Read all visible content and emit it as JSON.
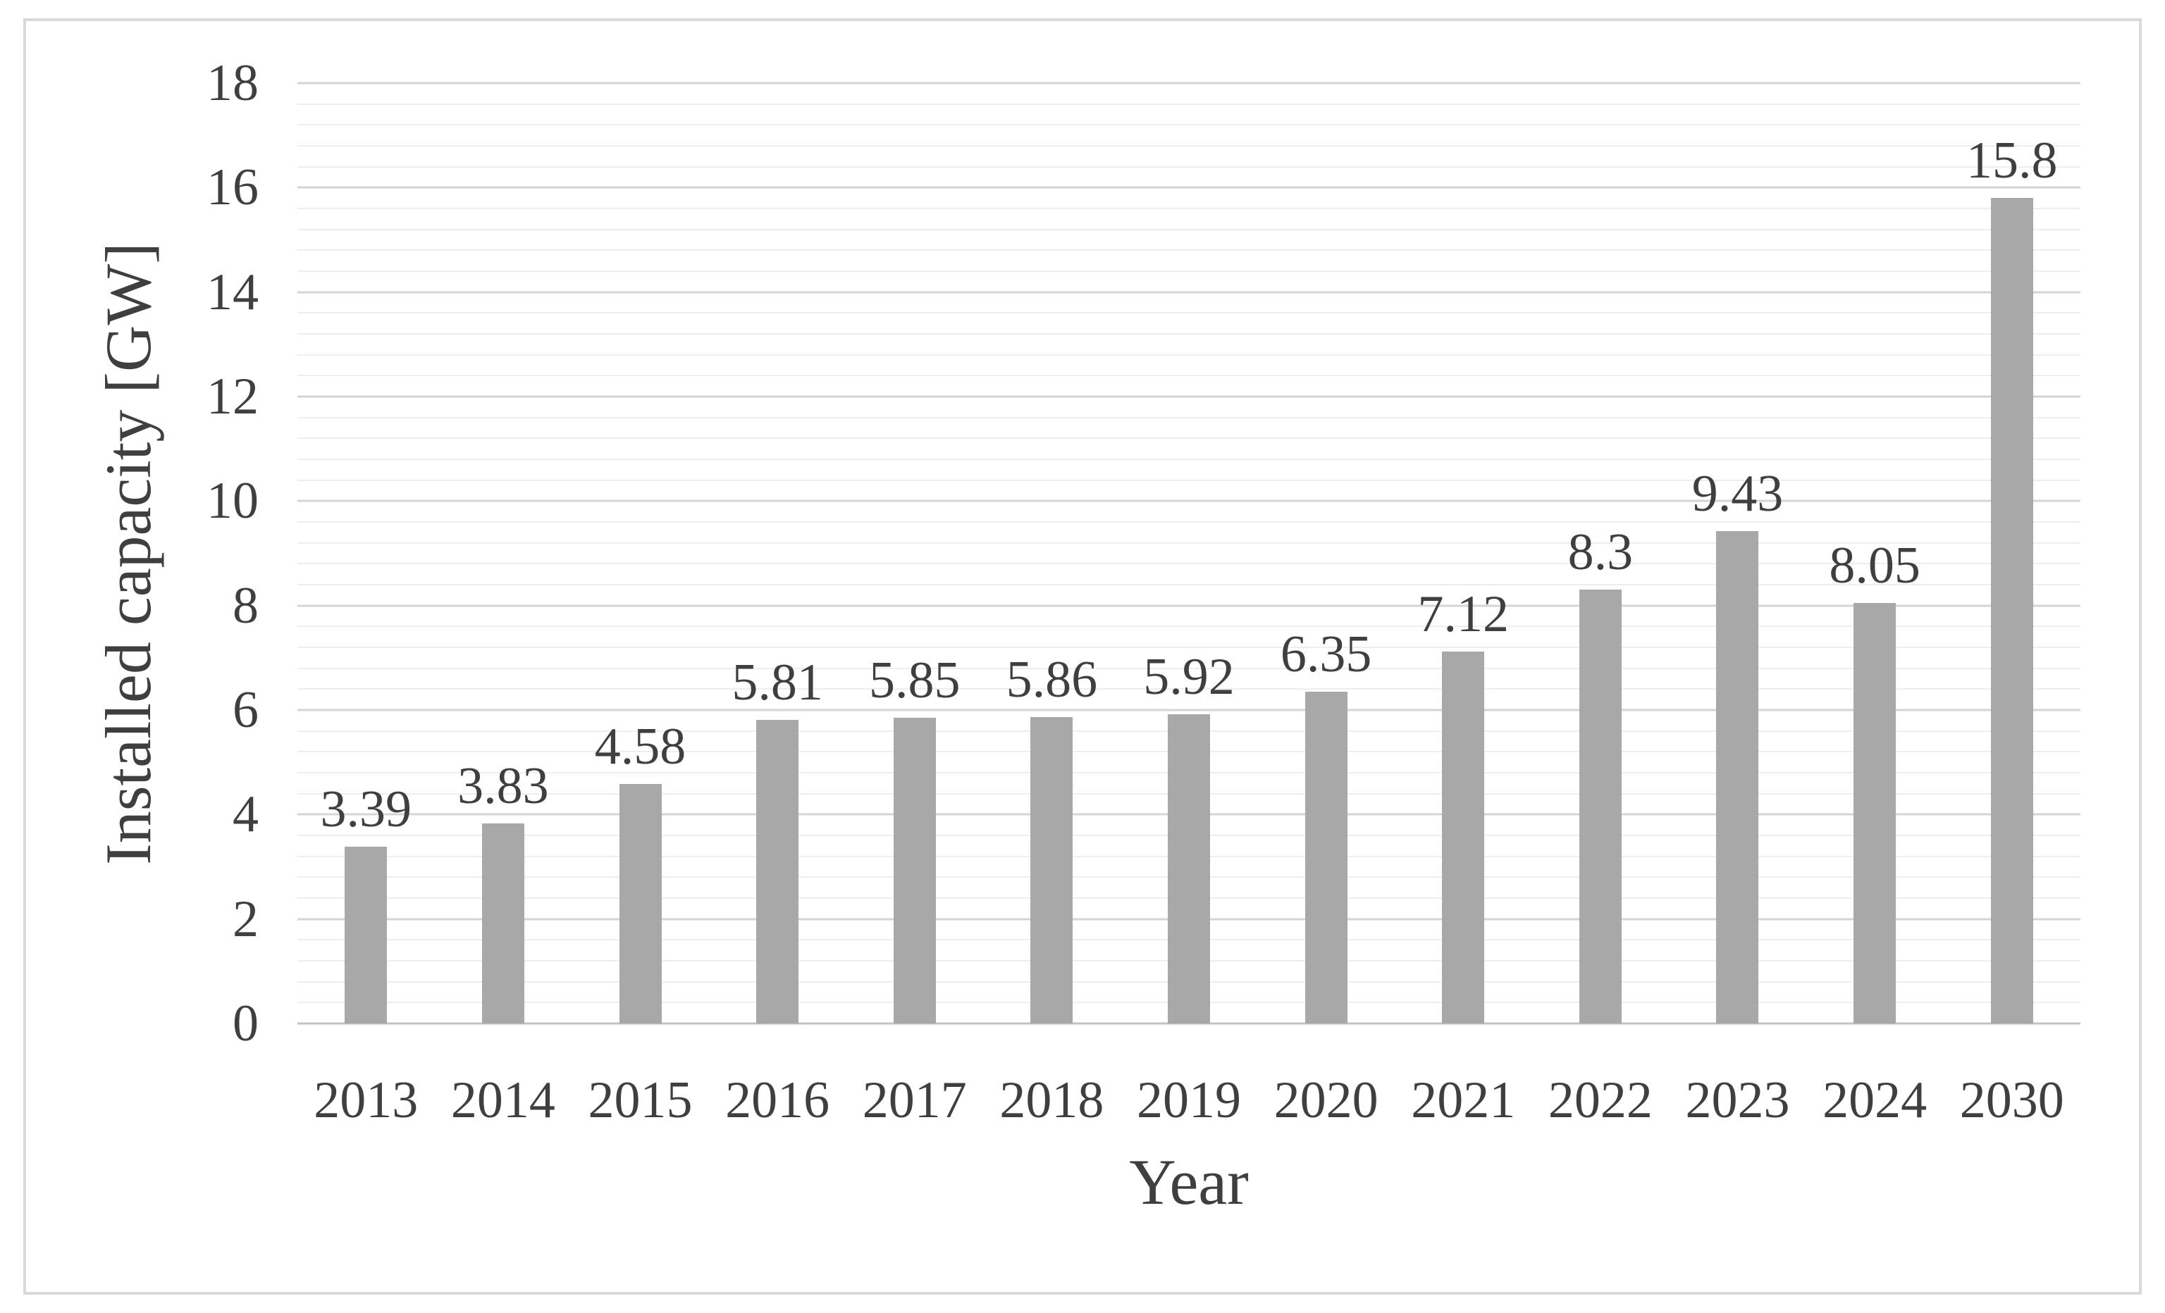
{
  "figure": {
    "border_color": "#d9d9d9",
    "background_color": "#ffffff",
    "text_color": "#3f3f3f"
  },
  "chart_data": {
    "type": "bar",
    "title": "",
    "xlabel": "Year",
    "ylabel": "Installed capacity [GW]",
    "categories": [
      "2013",
      "2014",
      "2015",
      "2016",
      "2017",
      "2018",
      "2019",
      "2020",
      "2021",
      "2022",
      "2023",
      "2024",
      "2030"
    ],
    "values": [
      3.39,
      3.83,
      4.58,
      5.81,
      5.85,
      5.86,
      5.92,
      6.35,
      7.12,
      8.3,
      9.43,
      8.05,
      15.8
    ],
    "data_labels": [
      "3.39",
      "3.83",
      "4.58",
      "5.81",
      "5.85",
      "5.86",
      "5.92",
      "6.35",
      "7.12",
      "8.3",
      "9.43",
      "8.05",
      "15.8"
    ],
    "ylim": [
      0,
      18
    ],
    "y_ticks": [
      0,
      2,
      4,
      6,
      8,
      10,
      12,
      14,
      16,
      18
    ],
    "y_major_step": 2,
    "y_minor_step": 0.4,
    "grid": "horizontal, major and minor, on",
    "legend_position": "none",
    "bar_color": "#a8a8a8",
    "gridline_major_color": "#d4d4d4",
    "gridline_minor_color": "#eeeeee",
    "baseline_color": "#c2c2c2"
  }
}
